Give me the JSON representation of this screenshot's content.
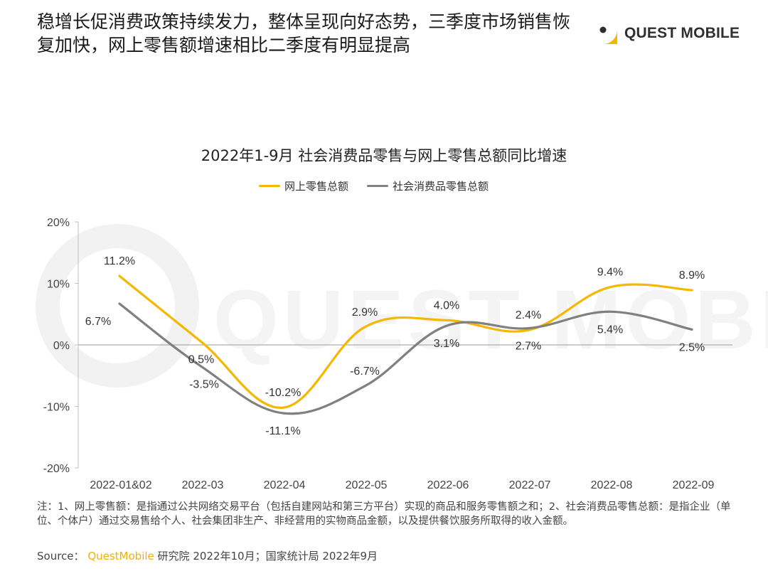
{
  "headline": "稳增长促消费政策持续发力，整体呈现向好态势，三季度市场销售恢复加快，网上零售额增速相比二季度有明显提高",
  "logo": {
    "icon": "quest-mobile-logo-icon",
    "text": "QUEST MOBILE",
    "watermark_text": "QUEST MOBILE"
  },
  "colors": {
    "online": "#f5b800",
    "total": "#808080",
    "accent": "#f3b000"
  },
  "chart_data": {
    "type": "line",
    "title": "2022年1-9月 社会消费品零售与网上零售总额同比增速",
    "categories": [
      "2022-01&02",
      "2022-03",
      "2022-04",
      "2022-05",
      "2022-06",
      "2022-07",
      "2022-08",
      "2022-09"
    ],
    "ylim": [
      -20,
      20
    ],
    "yticks": [
      "20%",
      "10%",
      "0%",
      "-10%",
      "-20%"
    ],
    "ytick_values": [
      20,
      10,
      0,
      -10,
      -20
    ],
    "grid": false,
    "legend_placement": "top-center",
    "series": [
      {
        "name": "网上零售总额",
        "color": "#f5b800",
        "values": [
          11.2,
          0.5,
          -10.2,
          2.9,
          4.0,
          2.4,
          9.4,
          8.9
        ],
        "labels": [
          "11.2%",
          "0.5%",
          "-10.2%",
          "2.9%",
          "4.0%",
          "2.4%",
          "9.4%",
          "8.9%"
        ]
      },
      {
        "name": "社会消费品零售总额",
        "color": "#808080",
        "values": [
          6.7,
          -3.5,
          -11.1,
          -6.7,
          3.1,
          2.7,
          5.4,
          2.5
        ],
        "labels": [
          "6.7%",
          "-3.5%",
          "-11.1%",
          "-6.7%",
          "3.1%",
          "2.7%",
          "5.4%",
          "2.5%"
        ]
      }
    ]
  },
  "note": "注：1、网上零售额：是指通过公共网络交易平台（包括自建网站和第三方平台）实现的商品和服务零售额之和；2、社会消费品零售总额：是指企业（单位、个体户）通过交易售给个人、社会集团非生产、非经营用的实物商品金额，以及提供餐饮服务所取得的收入金额。",
  "source": {
    "prefix": "Source：",
    "brand": "QuestMobile",
    "suffix": "研究院 2022年10月；国家统计局 2022年9月"
  }
}
